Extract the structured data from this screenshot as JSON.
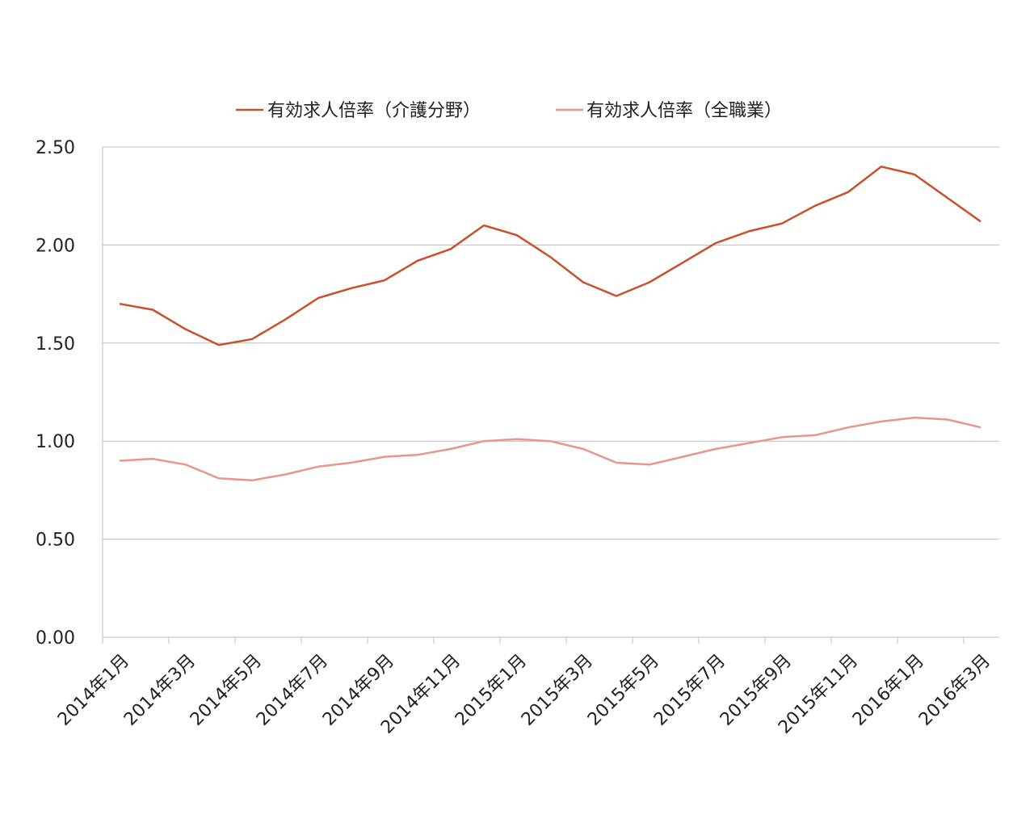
{
  "chart_data": {
    "type": "line",
    "title": "",
    "xlabel": "",
    "ylabel": "",
    "ylim": [
      0,
      2.5
    ],
    "yticks": [
      "0.00",
      "0.50",
      "1.00",
      "1.50",
      "2.00",
      "2.50"
    ],
    "grid": true,
    "legend_position": "top",
    "x": [
      "2014年1月",
      "2014年2月",
      "2014年3月",
      "2014年4月",
      "2014年5月",
      "2014年6月",
      "2014年7月",
      "2014年8月",
      "2014年9月",
      "2014年10月",
      "2014年11月",
      "2014年12月",
      "2015年1月",
      "2015年2月",
      "2015年3月",
      "2015年4月",
      "2015年5月",
      "2015年6月",
      "2015年7月",
      "2015年8月",
      "2015年9月",
      "2015年10月",
      "2015年11月",
      "2015年12月",
      "2016年1月",
      "2016年2月",
      "2016年3月"
    ],
    "x_tick_labels": [
      "2014年1月",
      "2014年3月",
      "2014年5月",
      "2014年7月",
      "2014年9月",
      "2014年11月",
      "2015年1月",
      "2015年3月",
      "2015年5月",
      "2015年7月",
      "2015年9月",
      "2015年11月",
      "2016年1月",
      "2016年3月"
    ],
    "series": [
      {
        "name": "有効求人倍率（介護分野）",
        "color": "#c8502a",
        "values": [
          1.7,
          1.67,
          1.57,
          1.49,
          1.52,
          1.62,
          1.73,
          1.78,
          1.82,
          1.92,
          1.98,
          2.1,
          2.05,
          1.94,
          1.81,
          1.74,
          1.81,
          1.91,
          2.01,
          2.07,
          2.11,
          2.2,
          2.27,
          2.4,
          2.36,
          2.24,
          2.12
        ]
      },
      {
        "name": "有効求人倍率（全職業）",
        "color": "#e8958a",
        "values": [
          0.9,
          0.91,
          0.88,
          0.81,
          0.8,
          0.83,
          0.87,
          0.89,
          0.92,
          0.93,
          0.96,
          1.0,
          1.01,
          1.0,
          0.96,
          0.89,
          0.88,
          0.92,
          0.96,
          0.99,
          1.02,
          1.03,
          1.07,
          1.1,
          1.12,
          1.11,
          1.07
        ]
      }
    ]
  }
}
